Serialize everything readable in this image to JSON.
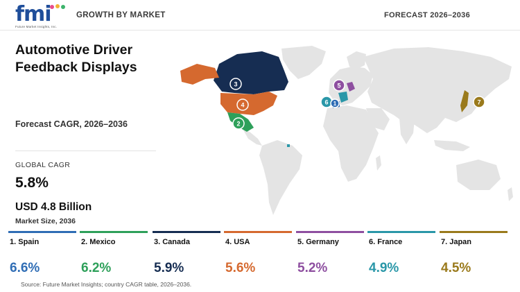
{
  "header": {
    "logo_text": "fmi",
    "logo_subtitle": "Future Market Insights, Inc.",
    "left_label": "GROWTH BY MARKET",
    "right_label": "FORECAST 2026–2036"
  },
  "summary": {
    "title": "Automotive Driver Feedback Displays",
    "forecast_label": "Forecast CAGR, 2026–2036",
    "global_label": "GLOBAL CAGR",
    "global_value": "5.8%",
    "market_value": "USD 4.8 Billion",
    "market_label": "Market Size, 2036"
  },
  "colors": {
    "land": "#e4e4e4",
    "spain": "#2f6db5",
    "mexico": "#2ea05a",
    "canada": "#162d52",
    "usa": "#d5692f",
    "germany": "#8e4fa0",
    "france": "#2a97a8",
    "japan": "#9a7a1c"
  },
  "countries": [
    {
      "rank": "1",
      "label": "1. Spain",
      "value": "6.6%",
      "color": "#2f6db5"
    },
    {
      "rank": "2",
      "label": "2. Mexico",
      "value": "6.2%",
      "color": "#2ea05a"
    },
    {
      "rank": "3",
      "label": "3. Canada",
      "value": "5.9%",
      "color": "#162d52"
    },
    {
      "rank": "4",
      "label": "4. USA",
      "value": "5.6%",
      "color": "#d5692f"
    },
    {
      "rank": "5",
      "label": "5. Germany",
      "value": "5.2%",
      "color": "#8e4fa0"
    },
    {
      "rank": "6",
      "label": "6. France",
      "value": "4.9%",
      "color": "#2a97a8"
    },
    {
      "rank": "7",
      "label": "7. Japan",
      "value": "4.5%",
      "color": "#9a7a1c"
    }
  ],
  "map_markers": [
    "3",
    "4",
    "2",
    "5",
    "6",
    "1",
    "7"
  ],
  "source": "Source: Future Market Insights; country CAGR table, 2026–2036."
}
